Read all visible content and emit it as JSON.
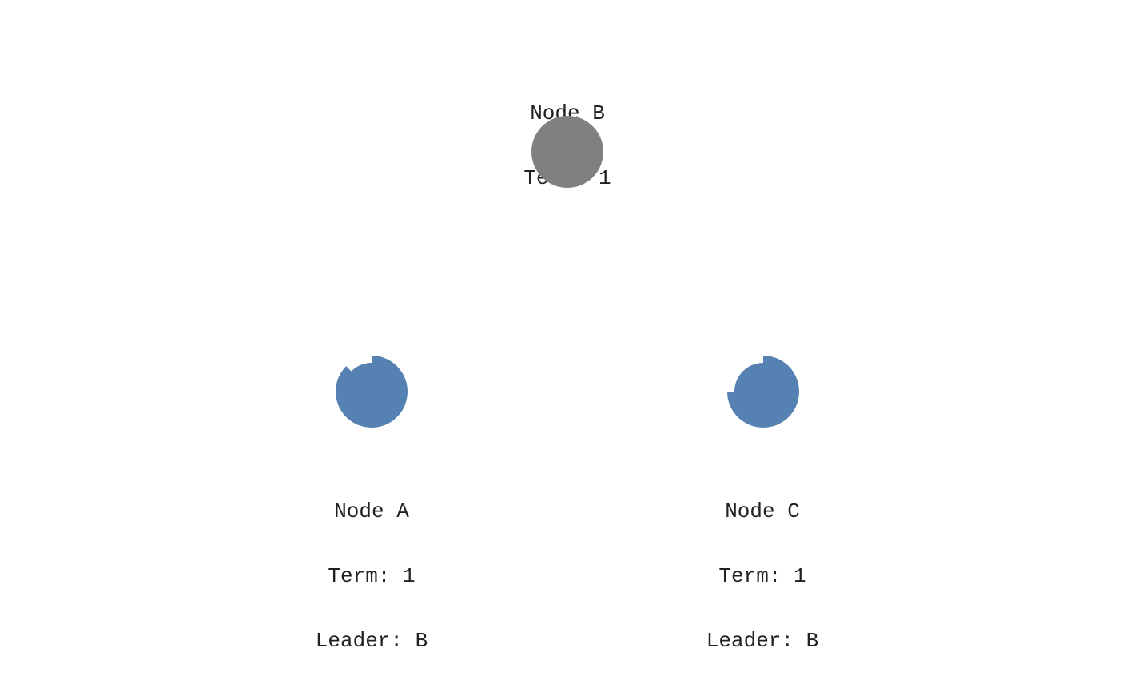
{
  "nodes": {
    "b": {
      "name": "Node B",
      "term": "Term: 1",
      "role": "leader",
      "timeout_progress": 1.0
    },
    "a": {
      "name": "Node A",
      "term": "Term: 1",
      "leader": "Leader: B",
      "role": "follower",
      "timeout_progress": 0.875
    },
    "c": {
      "name": "Node C",
      "term": "Term: 1",
      "leader": "Leader: B",
      "role": "follower",
      "timeout_progress": 0.75
    }
  },
  "colors": {
    "leader": "#808080",
    "follower": "#5582b2",
    "text": "#222222",
    "background": "#ffffff"
  }
}
